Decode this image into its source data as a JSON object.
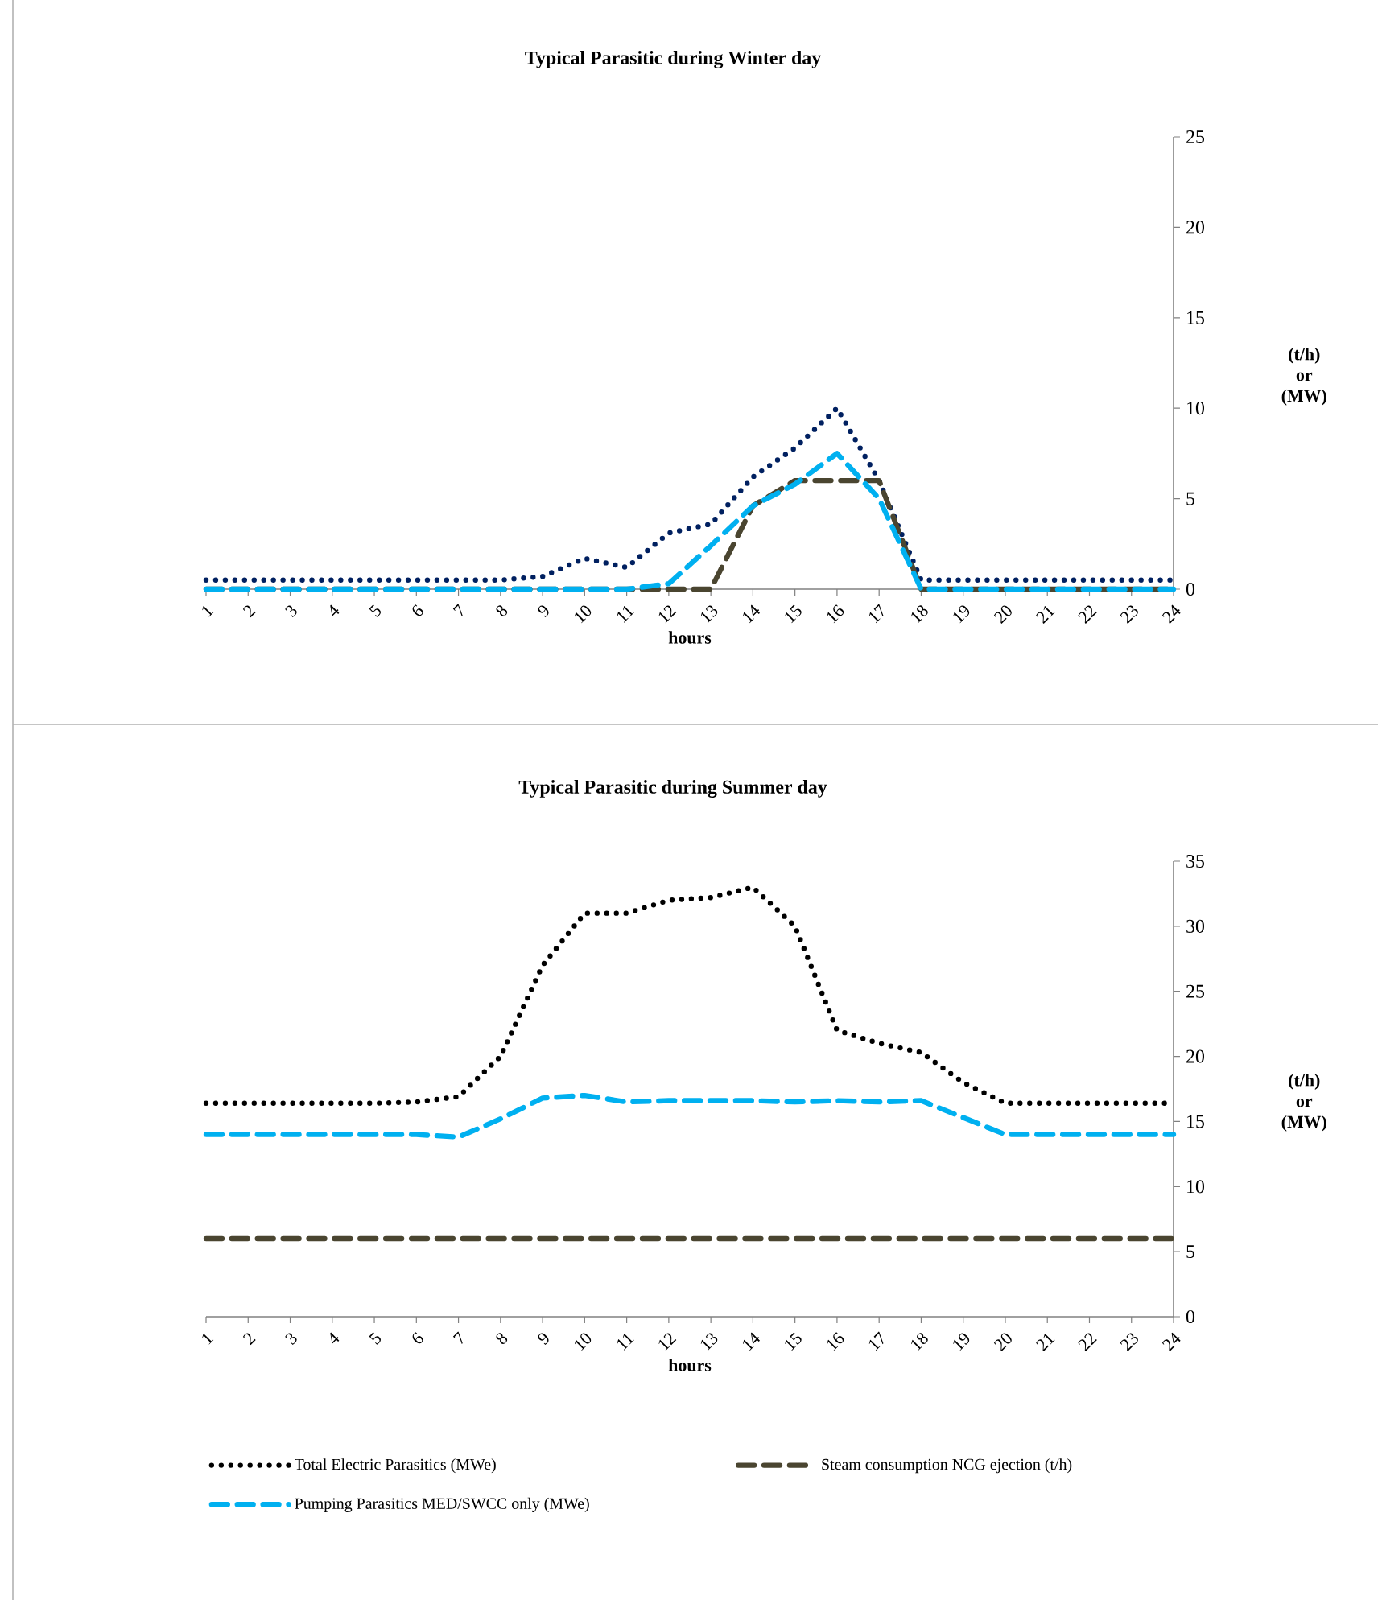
{
  "chart_data": [
    {
      "type": "line",
      "title": "Typical Parasitic during  Winter day",
      "xlabel": "hours",
      "ylabel": "(t/h) or (MW)",
      "categories": [
        "1",
        "2",
        "3",
        "4",
        "5",
        "6",
        "7",
        "8",
        "9",
        "10",
        "11",
        "12",
        "13",
        "14",
        "15",
        "16",
        "17",
        "18",
        "19",
        "20",
        "21",
        "22",
        "23",
        "24"
      ],
      "ylim": [
        0,
        25
      ],
      "yticks": [
        0,
        5,
        10,
        15,
        20,
        25
      ],
      "legend": false,
      "series": [
        {
          "color": "#002060",
          "line_style": "dotted",
          "values": [
            0.5,
            0.5,
            0.5,
            0.5,
            0.5,
            0.5,
            0.5,
            0.5,
            0.7,
            1.7,
            1.2,
            3.1,
            3.6,
            6.2,
            7.8,
            10.0,
            6.0,
            0.5,
            0.5,
            0.5,
            0.5,
            0.5,
            0.5,
            0.5
          ]
        },
        {
          "color": "#4a4530",
          "line_style": "dashed",
          "values": [
            0,
            0,
            0,
            0,
            0,
            0,
            0,
            0,
            0,
            0,
            0,
            0,
            0,
            4.6,
            6,
            6,
            6,
            0,
            0,
            0,
            0,
            0,
            0,
            0
          ]
        },
        {
          "color": "#00b0f0",
          "line_style": "dashed",
          "values": [
            0,
            0,
            0,
            0,
            0,
            0,
            0,
            0,
            0,
            0,
            0,
            0.3,
            2.4,
            4.6,
            5.8,
            7.5,
            5.0,
            0,
            0,
            0,
            0,
            0,
            0,
            0
          ]
        }
      ]
    },
    {
      "type": "line",
      "title": "Typical Parasitic during  Summer day",
      "xlabel": "hours",
      "ylabel": "(t/h) or (MW)",
      "categories": [
        "1",
        "2",
        "3",
        "4",
        "5",
        "6",
        "7",
        "8",
        "9",
        "10",
        "11",
        "12",
        "13",
        "14",
        "15",
        "16",
        "17",
        "18",
        "19",
        "20",
        "21",
        "22",
        "23",
        "24"
      ],
      "ylim": [
        0,
        35
      ],
      "yticks": [
        0,
        5,
        10,
        15,
        20,
        25,
        30,
        35
      ],
      "legend": "bottom",
      "series": [
        {
          "name": "Total Electric Parasitics (MWe)",
          "color": "#000000",
          "line_style": "dotted",
          "values": [
            16.4,
            16.4,
            16.4,
            16.4,
            16.4,
            16.5,
            16.9,
            20,
            27,
            31,
            31,
            32,
            32.2,
            33,
            30,
            22,
            21,
            20.3,
            18,
            16.4,
            16.4,
            16.4,
            16.4,
            16.4
          ]
        },
        {
          "name": "Steam consumption NCG ejection (t/h)",
          "color": "#4a4530",
          "line_style": "dashed",
          "values": [
            6,
            6,
            6,
            6,
            6,
            6,
            6,
            6,
            6,
            6,
            6,
            6,
            6,
            6,
            6,
            6,
            6,
            6,
            6,
            6,
            6,
            6,
            6,
            6
          ]
        },
        {
          "name": "Pumping Parasitics MED/SWCC only (MWe)",
          "color": "#00b0f0",
          "line_style": "dashed",
          "values": [
            14,
            14,
            14,
            14,
            14,
            14,
            13.8,
            15.2,
            16.8,
            17,
            16.5,
            16.6,
            16.6,
            16.6,
            16.5,
            16.6,
            16.5,
            16.6,
            15.3,
            14,
            14,
            14,
            14,
            14
          ]
        }
      ]
    }
  ]
}
